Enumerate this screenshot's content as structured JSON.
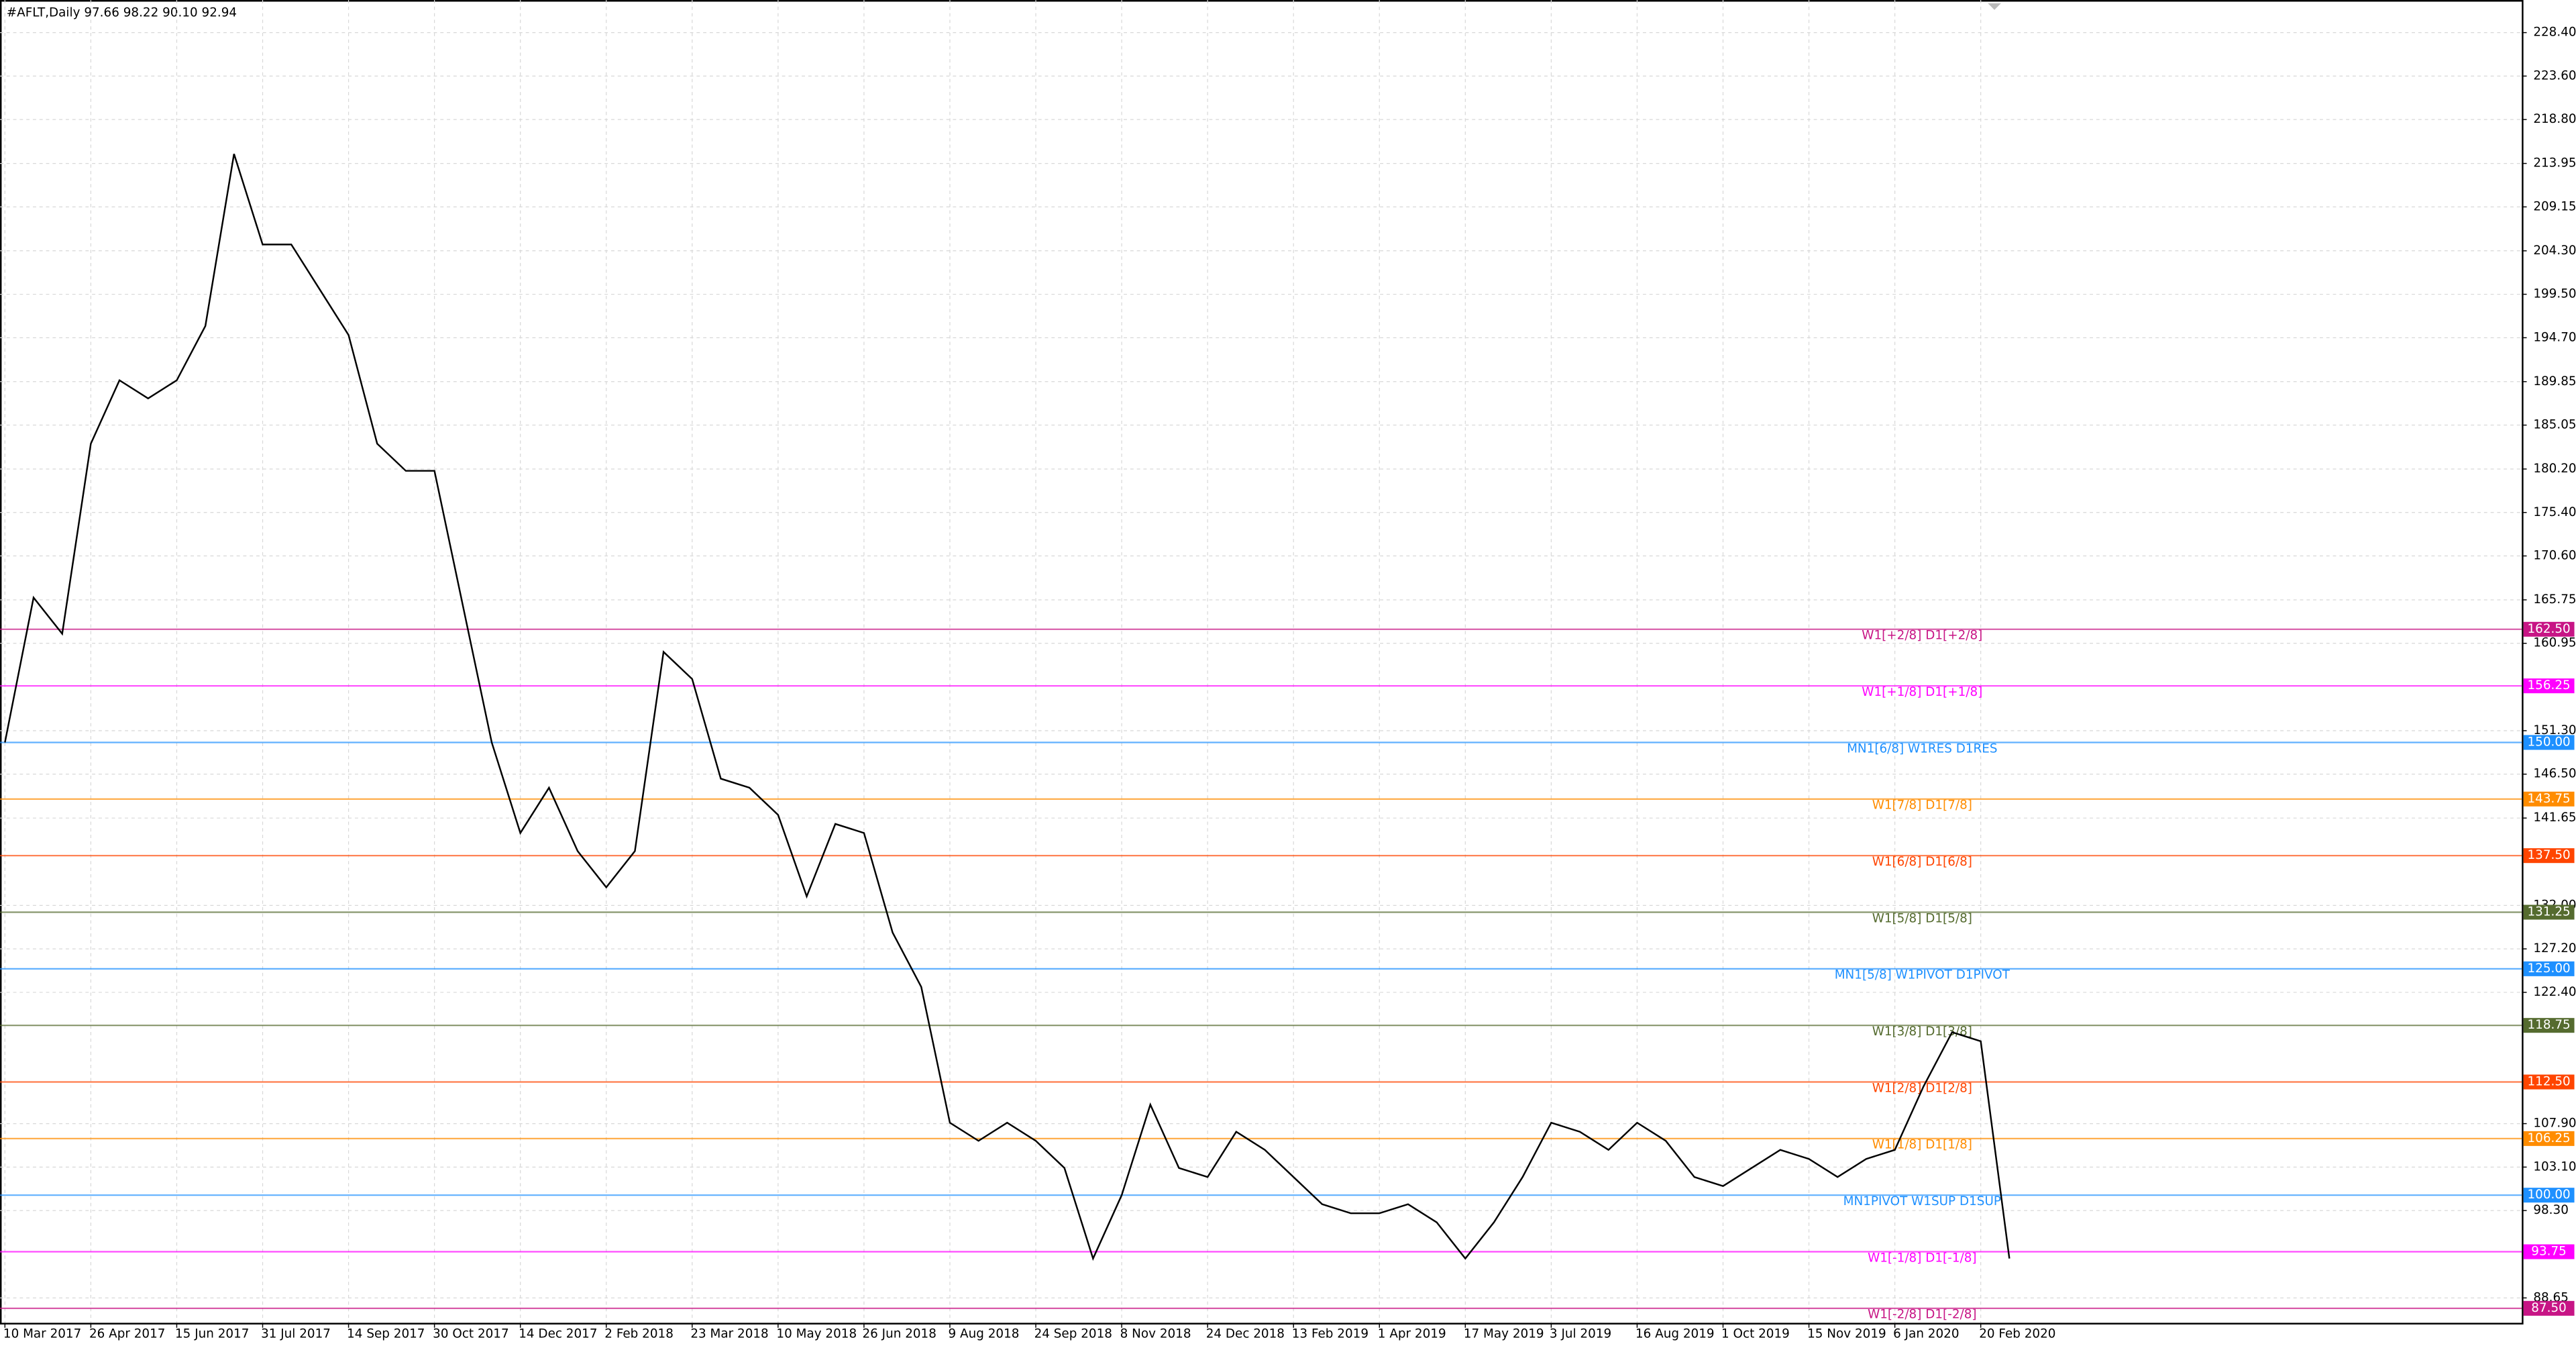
{
  "chart_data": {
    "type": "line",
    "title": "#AFLT,Daily  97.66 98.22 90.10 92.94",
    "categories": [
      "10 Mar 2017",
      null,
      null,
      "26 Apr 2017",
      null,
      null,
      "15 Jun 2017",
      null,
      null,
      "31 Jul 2017",
      null,
      null,
      "14 Sep 2017",
      null,
      null,
      "30 Oct 2017",
      null,
      null,
      "14 Dec 2017",
      null,
      null,
      "2 Feb 2018",
      null,
      null,
      "23 Mar 2018",
      null,
      null,
      "10 May 2018",
      null,
      null,
      "26 Jun 2018",
      null,
      null,
      "9 Aug 2018",
      null,
      null,
      "24 Sep 2018",
      null,
      null,
      "8 Nov 2018",
      null,
      null,
      "24 Dec 2018",
      null,
      null,
      "13 Feb 2019",
      null,
      null,
      "1 Apr 2019",
      null,
      null,
      "17 May 2019",
      null,
      null,
      "3 Jul 2019",
      null,
      null,
      "16 Aug 2019",
      null,
      null,
      "1 Oct 2019",
      null,
      null,
      "15 Nov 2019",
      null,
      null,
      "6 Jan 2020",
      null,
      null,
      "20 Feb 2020",
      null
    ],
    "series": [
      {
        "color": "#000000",
        "values": [
          150,
          166,
          162,
          183,
          190,
          188,
          190,
          196,
          215,
          205,
          205,
          200,
          195,
          183,
          180,
          180,
          165,
          150,
          140,
          145,
          138,
          134,
          138,
          160,
          157,
          146,
          145,
          142,
          133,
          141,
          140,
          129,
          123,
          108,
          106,
          108,
          106,
          103,
          93,
          100,
          110,
          103,
          102,
          107,
          105,
          102,
          99,
          98,
          98,
          99,
          97,
          93,
          97,
          102,
          108,
          107,
          105,
          108,
          106,
          102,
          101,
          103,
          105,
          104,
          102,
          104,
          105,
          112,
          118,
          117,
          93
        ]
      }
    ],
    "ylim": [
      85.9,
      232.0
    ],
    "yticks": [
      {
        "value": 228.4,
        "label": "228.40"
      },
      {
        "value": 223.6,
        "label": "223.60"
      },
      {
        "value": 218.8,
        "label": "218.80"
      },
      {
        "value": 213.95,
        "label": "213.95"
      },
      {
        "value": 209.15,
        "label": "209.15"
      },
      {
        "value": 204.3,
        "label": "204.30"
      },
      {
        "value": 199.5,
        "label": "199.50"
      },
      {
        "value": 194.7,
        "label": "194.70"
      },
      {
        "value": 189.85,
        "label": "189.85"
      },
      {
        "value": 185.05,
        "label": "185.05"
      },
      {
        "value": 180.2,
        "label": "180.20"
      },
      {
        "value": 175.4,
        "label": "175.40"
      },
      {
        "value": 170.6,
        "label": "170.60"
      },
      {
        "value": 165.75,
        "label": "165.75"
      },
      {
        "value": 160.95,
        "label": "160.95"
      },
      {
        "value": 151.3,
        "label": "151.30"
      },
      {
        "value": 146.5,
        "label": "146.50"
      },
      {
        "value": 141.65,
        "label": "141.65"
      },
      {
        "value": 132.0,
        "label": "132.00"
      },
      {
        "value": 127.2,
        "label": "127.20"
      },
      {
        "value": 122.4,
        "label": "122.40"
      },
      {
        "value": 107.9,
        "label": "107.90"
      },
      {
        "value": 103.1,
        "label": "103.10"
      },
      {
        "value": 98.3,
        "label": "98.30"
      },
      {
        "value": 88.65,
        "label": "88.65"
      }
    ],
    "grid": true,
    "levels": [
      {
        "value": 162.5,
        "label": "162.50",
        "text": "W1[+2/8] D1[+2/8]",
        "color": "#c71585"
      },
      {
        "value": 156.25,
        "label": "156.25",
        "text": "W1[+1/8] D1[+1/8]",
        "color": "#ff00ff"
      },
      {
        "value": 150.0,
        "label": "150.00",
        "text": "MN1[6/8] W1RES D1RES",
        "color": "#1e90ff"
      },
      {
        "value": 143.75,
        "label": "143.75",
        "text": "W1[7/8] D1[7/8]",
        "color": "#ff8c00"
      },
      {
        "value": 137.5,
        "label": "137.50",
        "text": "W1[6/8] D1[6/8]",
        "color": "#ff4500"
      },
      {
        "value": 131.25,
        "label": "131.25",
        "text": "W1[5/8] D1[5/8]",
        "color": "#556b2f"
      },
      {
        "value": 125.0,
        "label": "125.00",
        "text": "MN1[5/8] W1PIVOT D1PIVOT",
        "color": "#1e90ff"
      },
      {
        "value": 118.75,
        "label": "118.75",
        "text": "W1[3/8] D1[3/8]",
        "color": "#556b2f"
      },
      {
        "value": 112.5,
        "label": "112.50",
        "text": "W1[2/8] D1[2/8]",
        "color": "#ff4500"
      },
      {
        "value": 106.25,
        "label": "106.25",
        "text": "W1[1/8] D1[1/8]",
        "color": "#ff8c00"
      },
      {
        "value": 100.0,
        "label": "100.00",
        "text": "MN1PIVOT W1SUP D1SUP",
        "color": "#1e90ff"
      },
      {
        "value": 93.75,
        "label": "93.75",
        "text": "W1[-1/8] D1[-1/8]",
        "color": "#ff00ff"
      },
      {
        "value": 87.5,
        "label": "87.50",
        "text": "W1[-2/8] D1[-2/8]",
        "color": "#c71585"
      }
    ]
  }
}
